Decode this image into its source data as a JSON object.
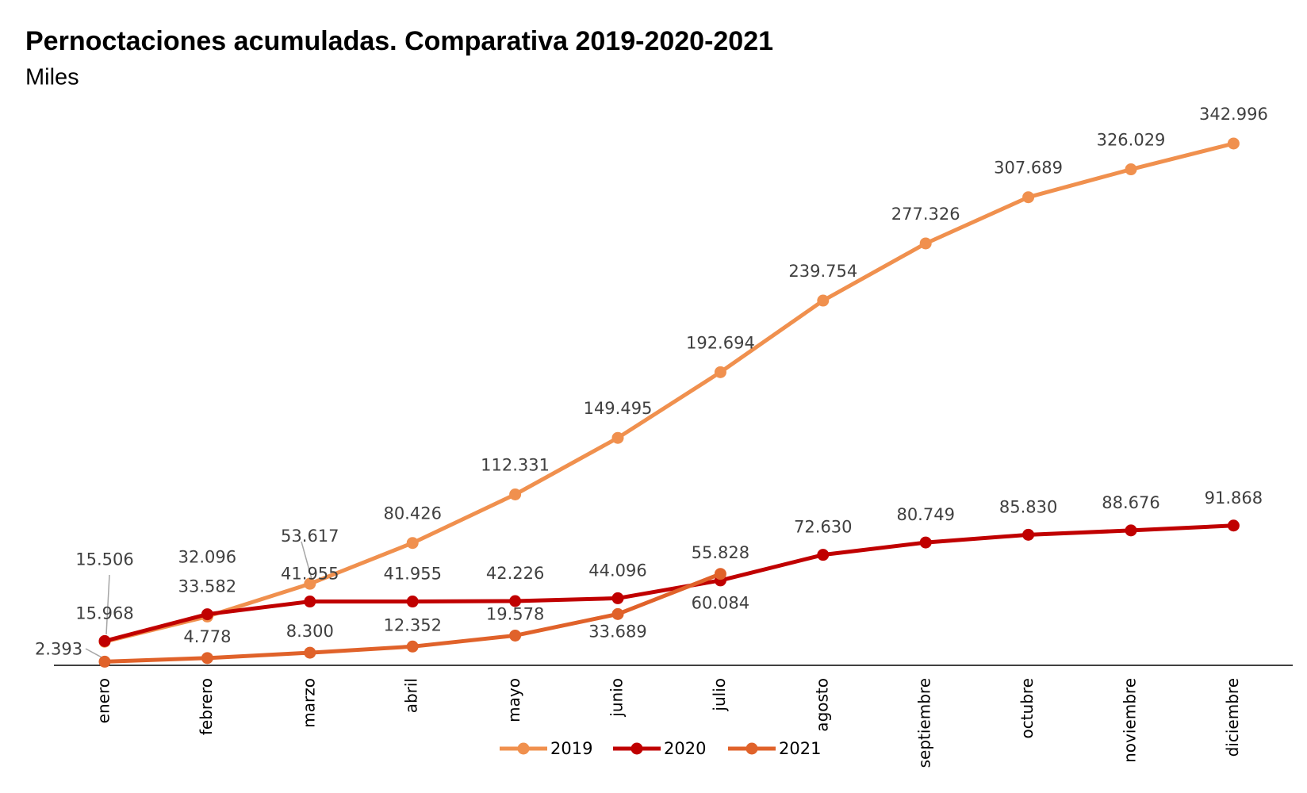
{
  "chart_data": {
    "type": "line",
    "title": "Pernoctaciones acumuladas. Comparativa 2019-2020-2021",
    "subtitle": "Miles",
    "categories": [
      "enero",
      "febrero",
      "marzo",
      "abril",
      "mayo",
      "junio",
      "julio",
      "agosto",
      "septiembre",
      "octubre",
      "noviembre",
      "diciembre"
    ],
    "ylim": [
      0,
      380000
    ],
    "legend": "bottom",
    "series": [
      {
        "name": "2019",
        "color": "#f0904e",
        "values": [
          15506,
          32096,
          53617,
          80426,
          112331,
          149495,
          192694,
          239754,
          277326,
          307689,
          326029,
          342996
        ],
        "value_labels": [
          "15.506",
          "32.096",
          "53.617",
          "80.426",
          "112.331",
          "149.495",
          "192.694",
          "239.754",
          "277.326",
          "307.689",
          "326.029",
          "342.996"
        ]
      },
      {
        "name": "2020",
        "color": "#c00000",
        "values": [
          15968,
          33582,
          41955,
          41955,
          42226,
          44096,
          55828,
          72630,
          80749,
          85830,
          88676,
          91868
        ],
        "value_labels": [
          "15.968",
          "33.582",
          "41.955",
          "41.955",
          "42.226",
          "44.096",
          "55.828",
          "72.630",
          "80.749",
          "85.830",
          "88.676",
          "91.868"
        ]
      },
      {
        "name": "2021",
        "color": "#e0622a",
        "values": [
          2393,
          4778,
          8300,
          12352,
          19578,
          33689,
          60084,
          null,
          null,
          null,
          null,
          null
        ],
        "value_labels": [
          "2.393",
          "4.778",
          "8.300",
          "12.352",
          "19.578",
          "33.689",
          "60.084",
          null,
          null,
          null,
          null,
          null
        ]
      }
    ]
  }
}
